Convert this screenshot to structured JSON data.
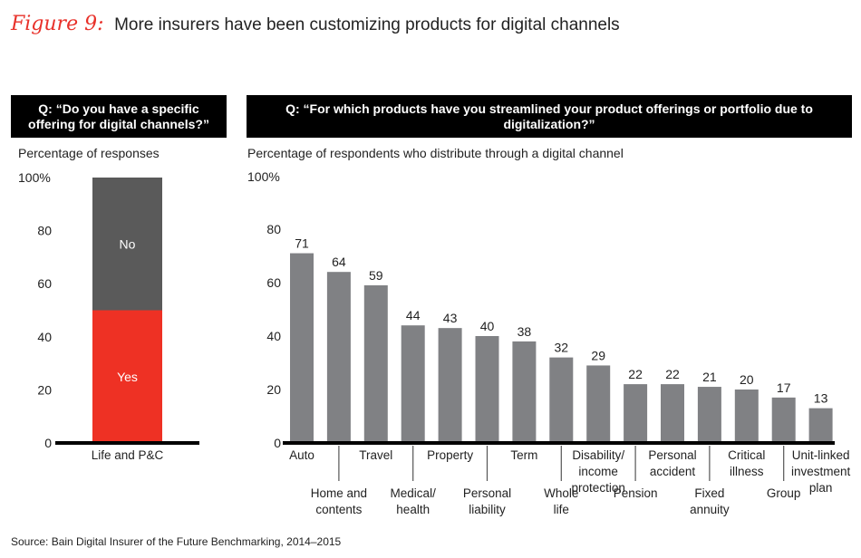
{
  "header": {
    "figure_label": "Figure 9:",
    "title": "More insurers have been customizing products for digital channels"
  },
  "left_panel": {
    "question_line1": "Q: “Do you have a specific",
    "question_line2": "offering for digital channels?”",
    "subtitle": "Percentage of responses"
  },
  "right_panel": {
    "question": "Q: “For which products have you streamlined your product offerings or portfolio due to digitalization?”",
    "subtitle": "Percentage of respondents who distribute through a digital channel"
  },
  "source": "Source: Bain Digital Insurer of the Future Benchmarking, 2014–2015",
  "colors": {
    "red": "#ee3124",
    "dark_gray": "#5a5a5a",
    "bar_gray": "#808184",
    "black": "#000000"
  },
  "chart_data": [
    {
      "type": "bar",
      "stacked": true,
      "title": "Q: “Do you have a specific offering for digital channels?”",
      "ylabel": "Percentage of responses",
      "ylim": [
        0,
        100
      ],
      "yticks": [
        "0",
        "20",
        "40",
        "60",
        "80",
        "100%"
      ],
      "categories": [
        "Life and P&C"
      ],
      "series": [
        {
          "name": "Yes",
          "values": [
            50
          ],
          "color": "#ee3124"
        },
        {
          "name": "No",
          "values": [
            50
          ],
          "color": "#5a5a5a"
        }
      ],
      "grid": false,
      "legend": "inline labels"
    },
    {
      "type": "bar",
      "title": "Q: “For which products have you streamlined your product offerings or portfolio due to digitalization?”",
      "ylabel": "Percentage of respondents who distribute through a digital channel",
      "ylim": [
        0,
        100
      ],
      "yticks": [
        "0",
        "20",
        "40",
        "60",
        "80",
        "100%"
      ],
      "categories": [
        "Auto",
        "Home and contents",
        "Travel",
        "Medical/ health",
        "Property",
        "Personal liability",
        "Term",
        "Whole life",
        "Disability/ income protection",
        "Pension",
        "Personal accident",
        "Fixed annuity",
        "Critical illness",
        "Group",
        "Unit-linked investment plan"
      ],
      "category_lines": [
        [
          "Auto"
        ],
        [
          "Home and",
          "contents"
        ],
        [
          "Travel"
        ],
        [
          "Medical/",
          "health"
        ],
        [
          "Property"
        ],
        [
          "Personal",
          "liability"
        ],
        [
          "Term"
        ],
        [
          "Whole",
          "life"
        ],
        [
          "Disability/",
          "income",
          "protection"
        ],
        [
          "Pension"
        ],
        [
          "Personal",
          "accident"
        ],
        [
          "Fixed",
          "annuity"
        ],
        [
          "Critical",
          "illness"
        ],
        [
          "Group"
        ],
        [
          "Unit-linked",
          "investment",
          "plan"
        ]
      ],
      "values": [
        71,
        64,
        59,
        44,
        43,
        40,
        38,
        32,
        29,
        22,
        22,
        21,
        20,
        17,
        13
      ],
      "grid": false,
      "data_labels": true
    }
  ]
}
